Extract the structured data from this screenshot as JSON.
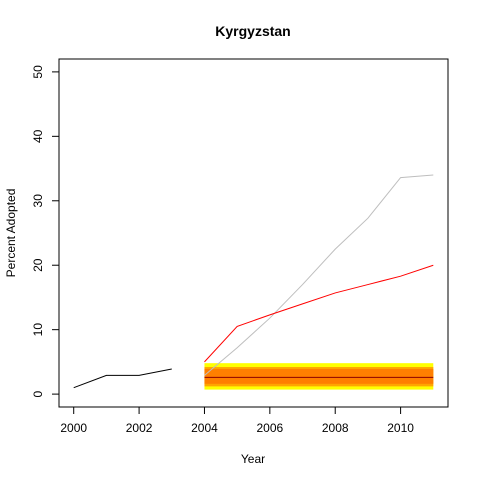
{
  "chart_data": {
    "type": "line",
    "title": "Kyrgyzstan",
    "xlabel": "Year",
    "ylabel": "Percent Adopted",
    "xlim": [
      1999.55,
      2011.45
    ],
    "ylim": [
      -2,
      52
    ],
    "x_ticks": [
      2000,
      2002,
      2004,
      2006,
      2008,
      2010
    ],
    "y_ticks": [
      0,
      10,
      20,
      30,
      40,
      50
    ],
    "grid": false,
    "legend": "none",
    "bands": [
      {
        "x": [
          2004,
          2011
        ],
        "y": [
          0.7,
          4.8
        ],
        "color": "#ffff00"
      },
      {
        "x": [
          2004,
          2011
        ],
        "y": [
          1.2,
          4.2
        ],
        "color": "#ffa500"
      },
      {
        "x": [
          2004,
          2011
        ],
        "y": [
          1.6,
          3.9
        ],
        "color": "#ff7f00"
      }
    ],
    "series": [
      {
        "x": [
          2000,
          2001,
          2002,
          2003
        ],
        "y": [
          1.0,
          2.9,
          2.9,
          3.9
        ],
        "color": "#000000"
      },
      {
        "x": [
          2004,
          2005,
          2006,
          2007,
          2008,
          2009,
          2010,
          2011
        ],
        "y": [
          2.9,
          7.2,
          11.8,
          17.0,
          22.5,
          27.3,
          33.6,
          34.0
        ],
        "color": "#bebebe"
      },
      {
        "x": [
          2004,
          2005,
          2006,
          2007,
          2008,
          2009,
          2010,
          2011
        ],
        "y": [
          5.0,
          10.5,
          12.3,
          14.0,
          15.7,
          17.0,
          18.3,
          20.0
        ],
        "color": "#ff0000"
      },
      {
        "x": [
          2004,
          2011
        ],
        "y": [
          2.6,
          2.6
        ],
        "color": "#8b0000"
      }
    ]
  }
}
